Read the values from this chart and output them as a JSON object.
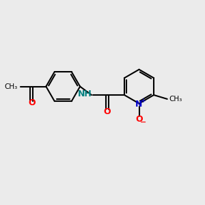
{
  "bg_color": "#ebebeb",
  "bond_color": "#000000",
  "bond_width": 1.5,
  "n_color": "#0000cc",
  "o_color": "#ff0000",
  "nh_color": "#008080",
  "text_fontsize": 9,
  "small_fontsize": 7.5,
  "fig_width": 3.0,
  "fig_height": 3.0,
  "dpi": 100,
  "xlim": [
    0,
    10
  ],
  "ylim": [
    0,
    10
  ]
}
